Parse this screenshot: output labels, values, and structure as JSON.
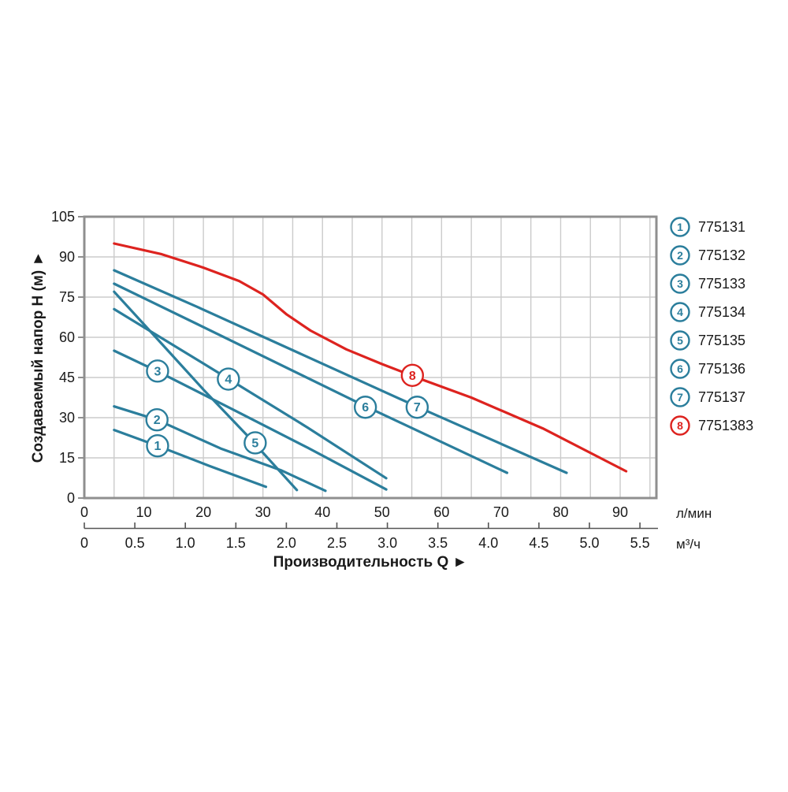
{
  "chart_data": {
    "type": "line",
    "title": "",
    "xlabel": "Производительность Q ►",
    "ylabel": "Создаваемый напор H (м) ►",
    "x_unit_primary": "л/мин",
    "x_unit_secondary": "м³/ч",
    "xlim": [
      0,
      96
    ],
    "ylim": [
      0,
      105
    ],
    "grid": {
      "x_step_lmin": 5,
      "y_step_m": 15,
      "visible": true
    },
    "x_ticks_lmin": [
      "0",
      "10",
      "20",
      "30",
      "40",
      "50",
      "60",
      "70",
      "80",
      "90"
    ],
    "x_ticks_m3h": [
      "0",
      "0.5",
      "1.0",
      "1.5",
      "2.0",
      "2.5",
      "3.0",
      "3.5",
      "4.0",
      "4.5",
      "5.0",
      "5.5"
    ],
    "y_ticks": [
      "105",
      "90",
      "75",
      "60",
      "45",
      "30",
      "15",
      "0"
    ],
    "legend_position": "right",
    "colors": {
      "teal": "#2b7e9c",
      "red": "#dd231f",
      "grid": "#cbcbcb",
      "frame": "#8f8f8f",
      "scale_line": "#555555",
      "text": "#1a1a1a"
    },
    "series": [
      {
        "num": "1",
        "code": "775131",
        "color": "teal",
        "label_at": [
          12.3,
          19.5
        ],
        "points": [
          [
            5,
            25.4
          ],
          [
            12.3,
            19.5
          ],
          [
            21,
            12
          ],
          [
            30.5,
            4.2
          ]
        ]
      },
      {
        "num": "2",
        "code": "775132",
        "color": "teal",
        "label_at": [
          12.2,
          29.2
        ],
        "points": [
          [
            5,
            34.2
          ],
          [
            12.2,
            29.2
          ],
          [
            22.9,
            18.5
          ],
          [
            33,
            10.4
          ],
          [
            40.5,
            2.7
          ]
        ]
      },
      {
        "num": "3",
        "code": "775133",
        "color": "teal",
        "label_at": [
          12.3,
          47.4
        ],
        "points": [
          [
            5,
            55
          ],
          [
            12.3,
            47.3
          ],
          [
            25,
            33
          ],
          [
            37.5,
            18.8
          ],
          [
            50.7,
            3.2
          ]
        ]
      },
      {
        "num": "4",
        "code": "775134",
        "color": "teal",
        "label_at": [
          24.2,
          44.4
        ],
        "points": [
          [
            5,
            70.5
          ],
          [
            15,
            57
          ],
          [
            24.2,
            44.5
          ],
          [
            37.5,
            26.3
          ],
          [
            50.7,
            7.4
          ]
        ]
      },
      {
        "num": "5",
        "code": "775135",
        "color": "teal",
        "label_at": [
          28.7,
          20.6
        ],
        "points": [
          [
            5,
            77
          ],
          [
            12,
            60
          ],
          [
            20,
            40.5
          ],
          [
            27.3,
            23.5
          ],
          [
            35.7,
            3
          ]
        ]
      },
      {
        "num": "6",
        "code": "775136",
        "color": "teal",
        "label_at": [
          47.2,
          33.9
        ],
        "points": [
          [
            5,
            80
          ],
          [
            18.9,
            65
          ],
          [
            47,
            34.5
          ],
          [
            71,
            9.4
          ]
        ]
      },
      {
        "num": "7",
        "code": "775137",
        "color": "teal",
        "label_at": [
          55.9,
          33.9
        ],
        "points": [
          [
            5,
            85
          ],
          [
            18.9,
            71.4
          ],
          [
            56,
            34
          ],
          [
            81,
            9.4
          ]
        ]
      },
      {
        "num": "8",
        "code": "7751383",
        "color": "red",
        "label_at": [
          55.1,
          45.8
        ],
        "points": [
          [
            5,
            95
          ],
          [
            13,
            91
          ],
          [
            20,
            86
          ],
          [
            26,
            81
          ],
          [
            30,
            76
          ],
          [
            34,
            68.5
          ],
          [
            38,
            62.5
          ],
          [
            44,
            55.5
          ],
          [
            50,
            50
          ],
          [
            57,
            44
          ],
          [
            65,
            37.5
          ],
          [
            77,
            26
          ],
          [
            91,
            10
          ]
        ]
      }
    ]
  }
}
